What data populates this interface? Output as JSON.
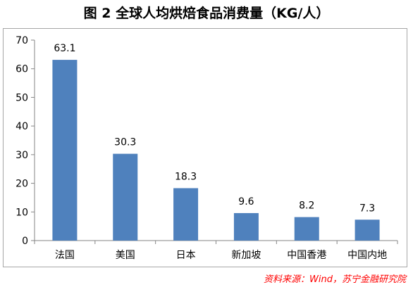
{
  "chart_data": {
    "type": "bar",
    "title": "图 2  全球人均烘焙食品消费量（KG/人）",
    "categories": [
      "法国",
      "美国",
      "日本",
      "新加坡",
      "中国香港",
      "中国内地"
    ],
    "values": [
      63.1,
      30.3,
      18.3,
      9.6,
      8.2,
      7.3
    ],
    "value_labels": [
      "63.1",
      "30.3",
      "18.3",
      "9.6",
      "8.2",
      "7.3"
    ],
    "ylim": [
      0,
      70
    ],
    "yticks": [
      "0",
      "10",
      "20",
      "30",
      "40",
      "50",
      "60",
      "70"
    ],
    "ytick_values": [
      0,
      10,
      20,
      30,
      40,
      50,
      60,
      70
    ],
    "bar_color": "#4f81bd",
    "grid": false,
    "legend": "none"
  },
  "source": "资料来源：Wind，苏宁金融研究院"
}
